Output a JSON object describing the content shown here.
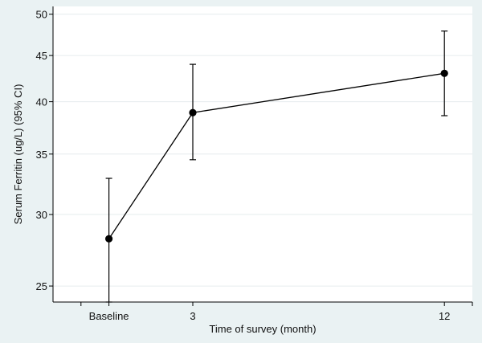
{
  "chart_data": {
    "type": "line",
    "title": "",
    "xlabel": "Time of survey (month)",
    "ylabel": "Serum Ferritin (ug/L) (95% CI)",
    "y_scale": "log",
    "ylim": [
      24,
      51
    ],
    "xlim": [
      -2,
      13
    ],
    "yticks": [
      25,
      30,
      35,
      40,
      45,
      50
    ],
    "xticks": [
      {
        "value": 0,
        "label": "Baseline"
      },
      {
        "value": 3,
        "label": "3"
      },
      {
        "value": 12,
        "label": "12"
      }
    ],
    "grid": true,
    "series": [
      {
        "points": [
          {
            "x": 0,
            "y": 28.2,
            "ci_low": 24.0,
            "ci_high": 32.9
          },
          {
            "x": 3,
            "y": 38.9,
            "ci_low": 34.5,
            "ci_high": 44.0
          },
          {
            "x": 12,
            "y": 43.0,
            "ci_low": 38.6,
            "ci_high": 47.9
          }
        ]
      }
    ],
    "colors": {
      "background": "#eaf2f3",
      "plot_area": "#ffffff",
      "grid": "#e6ecee",
      "line": "#000000"
    }
  }
}
